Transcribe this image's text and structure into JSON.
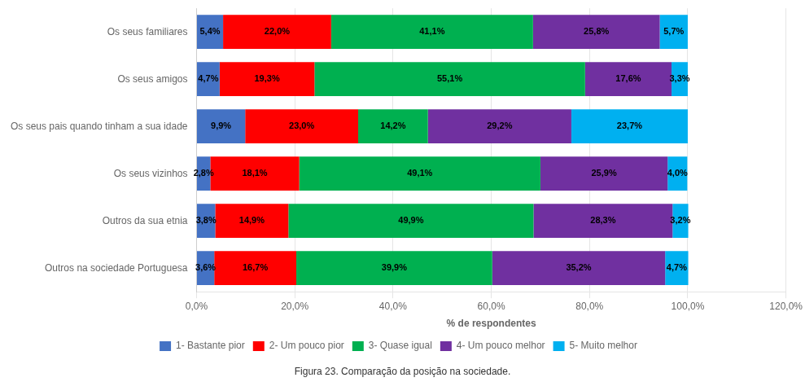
{
  "chart_data": {
    "type": "bar",
    "orientation": "horizontal",
    "stacked": true,
    "data_labels": true,
    "grid": true,
    "legend": "bottom",
    "xlabel": "% de respondentes",
    "annotations": [
      "Figura 23. Comparação da posição na sociedade."
    ],
    "categories": [
      "Os seus familiares",
      "Os seus amigos",
      "Os seus pais quando tinham a sua idade",
      "Os seus vizinhos",
      "Outros da sua etnia",
      "Outros na sociedade Portuguesa"
    ],
    "series": [
      {
        "name": "1- Bastante pior",
        "color": "#4472C4",
        "values": [
          5.4,
          4.7,
          9.9,
          2.8,
          3.8,
          3.6
        ],
        "value_labels": [
          "5,4%",
          "4,7%",
          "9,9%",
          "2,8%",
          "3,8%",
          "3,6%"
        ]
      },
      {
        "name": "2- Um pouco pior",
        "color": "#FF0000",
        "values": [
          22.0,
          19.3,
          23.0,
          18.1,
          14.9,
          16.7
        ],
        "value_labels": [
          "22,0%",
          "19,3%",
          "23,0%",
          "18,1%",
          "14,9%",
          "16,7%"
        ]
      },
      {
        "name": "3- Quase igual",
        "color": "#00B050",
        "values": [
          41.1,
          55.1,
          14.2,
          49.1,
          49.9,
          39.9
        ],
        "value_labels": [
          "41,1%",
          "55,1%",
          "14,2%",
          "49,1%",
          "49,9%",
          "39,9%"
        ]
      },
      {
        "name": "4- Um pouco melhor",
        "color": "#7030A0",
        "values": [
          25.8,
          17.6,
          29.2,
          25.9,
          28.3,
          35.2
        ],
        "value_labels": [
          "25,8%",
          "17,6%",
          "29,2%",
          "25,9%",
          "28,3%",
          "35,2%"
        ]
      },
      {
        "name": "5- Muito melhor",
        "color": "#00B0F0",
        "values": [
          5.7,
          3.3,
          23.7,
          4.0,
          3.2,
          4.7
        ],
        "value_labels": [
          "5,7%",
          "3,3%",
          "23,7%",
          "4,0%",
          "3,2%",
          "4,7%"
        ]
      }
    ],
    "xlim": [
      0,
      120
    ],
    "xticks": [
      {
        "value": 0,
        "label": "0,0%"
      },
      {
        "value": 20,
        "label": "20,0%"
      },
      {
        "value": 40,
        "label": "40,0%"
      },
      {
        "value": 60,
        "label": "60,0%"
      },
      {
        "value": 80,
        "label": "80,0%"
      },
      {
        "value": 100,
        "label": "100,0%"
      },
      {
        "value": 120,
        "label": "120,0%"
      }
    ]
  }
}
